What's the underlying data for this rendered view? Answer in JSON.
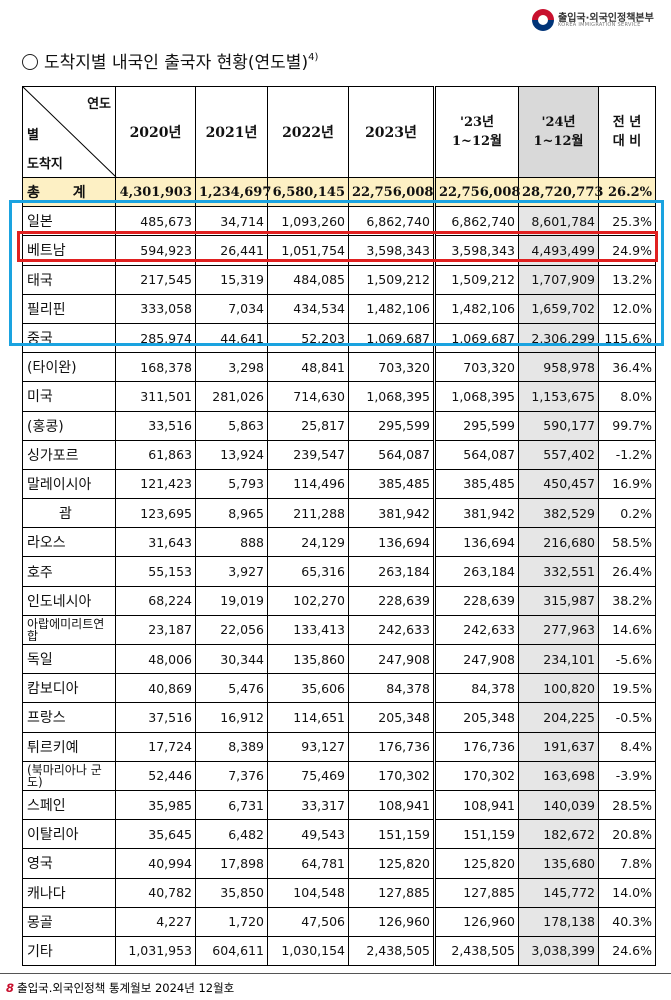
{
  "header": {
    "org_ko": "출입국·외국인정책본부",
    "org_en": "KOREA IMMIGRATION SERVICE"
  },
  "title": {
    "text": "도착지별 내국인 출국자 현황(연도별)",
    "footnote": "4)"
  },
  "table": {
    "corner": {
      "top": "연도",
      "middle": "별",
      "bottom": "도착지"
    },
    "headers": [
      "2020년",
      "2021년",
      "2022년",
      "2023년",
      "'23년\n1~12월",
      "'24년\n1~12월",
      "전 년\n대 비"
    ],
    "total": [
      "총 계",
      "4,301,903",
      "1,234,697",
      "6,580,145",
      "22,756,008",
      "22,756,008",
      "28,720,773",
      "26.2%"
    ],
    "rows": [
      [
        "일본",
        "485,673",
        "34,714",
        "1,093,260",
        "6,862,740",
        "6,862,740",
        "8,601,784",
        "25.3%"
      ],
      [
        "베트남",
        "594,923",
        "26,441",
        "1,051,754",
        "3,598,343",
        "3,598,343",
        "4,493,499",
        "24.9%"
      ],
      [
        "태국",
        "217,545",
        "15,319",
        "484,085",
        "1,509,212",
        "1,509,212",
        "1,707,909",
        "13.2%"
      ],
      [
        "필리핀",
        "333,058",
        "7,034",
        "434,534",
        "1,482,106",
        "1,482,106",
        "1,659,702",
        "12.0%"
      ],
      [
        "중국",
        "285,974",
        "44,641",
        "52,203",
        "1,069,687",
        "1,069,687",
        "2,306,299",
        "115.6%"
      ],
      [
        "(타이완)",
        "168,378",
        "3,298",
        "48,841",
        "703,320",
        "703,320",
        "958,978",
        "36.4%"
      ],
      [
        "미국",
        "311,501",
        "281,026",
        "714,630",
        "1,068,395",
        "1,068,395",
        "1,153,675",
        "8.0%"
      ],
      [
        "(홍콩)",
        "33,516",
        "5,863",
        "25,817",
        "295,599",
        "295,599",
        "590,177",
        "99.7%"
      ],
      [
        "싱가포르",
        "61,863",
        "13,924",
        "239,547",
        "564,087",
        "564,087",
        "557,402",
        "-1.2%"
      ],
      [
        "말레이시아",
        "121,423",
        "5,793",
        "114,496",
        "385,485",
        "385,485",
        "450,457",
        "16.9%"
      ],
      [
        "괌",
        "123,695",
        "8,965",
        "211,288",
        "381,942",
        "381,942",
        "382,529",
        "0.2%"
      ],
      [
        "라오스",
        "31,643",
        "888",
        "24,129",
        "136,694",
        "136,694",
        "216,680",
        "58.5%"
      ],
      [
        "호주",
        "55,153",
        "3,927",
        "65,316",
        "263,184",
        "263,184",
        "332,551",
        "26.4%"
      ],
      [
        "인도네시아",
        "68,224",
        "19,019",
        "102,270",
        "228,639",
        "228,639",
        "315,987",
        "38.2%"
      ],
      [
        "아랍에미리트연합",
        "23,187",
        "22,056",
        "133,413",
        "242,633",
        "242,633",
        "277,963",
        "14.6%"
      ],
      [
        "독일",
        "48,006",
        "30,344",
        "135,860",
        "247,908",
        "247,908",
        "234,101",
        "-5.6%"
      ],
      [
        "캄보디아",
        "40,869",
        "5,476",
        "35,606",
        "84,378",
        "84,378",
        "100,820",
        "19.5%"
      ],
      [
        "프랑스",
        "37,516",
        "16,912",
        "114,651",
        "205,348",
        "205,348",
        "204,225",
        "-0.5%"
      ],
      [
        "튀르키예",
        "17,724",
        "8,389",
        "93,127",
        "176,736",
        "176,736",
        "191,637",
        "8.4%"
      ],
      [
        "(북마리아나 군도)",
        "52,446",
        "7,376",
        "75,469",
        "170,302",
        "170,302",
        "163,698",
        "-3.9%"
      ],
      [
        "스페인",
        "35,985",
        "6,731",
        "33,317",
        "108,941",
        "108,941",
        "140,039",
        "28.5%"
      ],
      [
        "이탈리아",
        "35,645",
        "6,482",
        "49,543",
        "151,159",
        "151,159",
        "182,672",
        "20.8%"
      ],
      [
        "영국",
        "40,994",
        "17,898",
        "64,781",
        "125,820",
        "125,820",
        "135,680",
        "7.8%"
      ],
      [
        "캐나다",
        "40,782",
        "35,850",
        "104,548",
        "127,885",
        "127,885",
        "145,772",
        "14.0%"
      ],
      [
        "몽골",
        "4,227",
        "1,720",
        "47,506",
        "126,960",
        "126,960",
        "178,138",
        "40.3%"
      ],
      [
        "기타",
        "1,031,953",
        "604,611",
        "1,030,154",
        "2,438,505",
        "2,438,505",
        "3,038,399",
        "24.6%"
      ]
    ]
  },
  "footer": {
    "page": "8",
    "text": "출입국.외국인정책 통계월보 2024년 12월호"
  },
  "colors": {
    "highlight_blue": "#1aa3e0",
    "highlight_red": "#e02020",
    "total_row": "#fdf0c4",
    "current_col": "#e6e6e6"
  }
}
